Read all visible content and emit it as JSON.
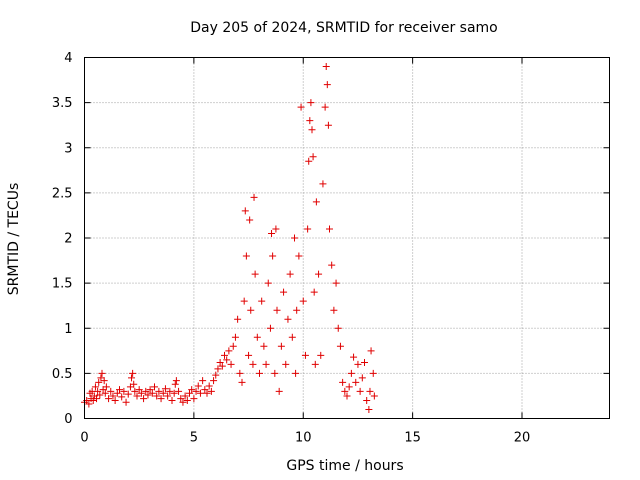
{
  "chart_data": {
    "type": "scatter",
    "title": "Day 205 of 2024, SRMTID for receiver samo",
    "xlabel": "GPS time / hours",
    "ylabel": "SRMTID / TECUs",
    "xlim": [
      0,
      24
    ],
    "ylim": [
      0,
      4
    ],
    "xticks": [
      0,
      5,
      10,
      15,
      20
    ],
    "xtick_labels": [
      "0",
      "5",
      "10",
      "15",
      "20"
    ],
    "yticks": [
      0,
      0.5,
      1,
      1.5,
      2,
      2.5,
      3,
      3.5,
      4
    ],
    "ytick_labels": [
      "0",
      "0.5",
      "1",
      "1.5",
      "2",
      "2.5",
      "3",
      "3.5",
      "4"
    ],
    "grid": true,
    "marker": "+",
    "series": [
      {
        "name": "SRMTID",
        "color": "#e00000",
        "points": [
          [
            0.0,
            0.18
          ],
          [
            0.1,
            0.2
          ],
          [
            0.2,
            0.16
          ],
          [
            0.25,
            0.28
          ],
          [
            0.3,
            0.22
          ],
          [
            0.35,
            0.3
          ],
          [
            0.4,
            0.2
          ],
          [
            0.45,
            0.25
          ],
          [
            0.5,
            0.35
          ],
          [
            0.55,
            0.22
          ],
          [
            0.6,
            0.3
          ],
          [
            0.65,
            0.4
          ],
          [
            0.7,
            0.26
          ],
          [
            0.75,
            0.45
          ],
          [
            0.8,
            0.5
          ],
          [
            0.85,
            0.32
          ],
          [
            0.9,
            0.42
          ],
          [
            0.95,
            0.28
          ],
          [
            1.0,
            0.35
          ],
          [
            1.1,
            0.22
          ],
          [
            1.2,
            0.3
          ],
          [
            1.3,
            0.25
          ],
          [
            1.4,
            0.2
          ],
          [
            1.5,
            0.28
          ],
          [
            1.6,
            0.32
          ],
          [
            1.7,
            0.24
          ],
          [
            1.8,
            0.3
          ],
          [
            1.9,
            0.18
          ],
          [
            2.0,
            0.27
          ],
          [
            2.1,
            0.35
          ],
          [
            2.15,
            0.45
          ],
          [
            2.2,
            0.5
          ],
          [
            2.25,
            0.38
          ],
          [
            2.3,
            0.3
          ],
          [
            2.4,
            0.25
          ],
          [
            2.5,
            0.32
          ],
          [
            2.6,
            0.28
          ],
          [
            2.7,
            0.22
          ],
          [
            2.8,
            0.3
          ],
          [
            2.9,
            0.26
          ],
          [
            3.0,
            0.32
          ],
          [
            3.1,
            0.28
          ],
          [
            3.2,
            0.35
          ],
          [
            3.3,
            0.25
          ],
          [
            3.4,
            0.3
          ],
          [
            3.5,
            0.22
          ],
          [
            3.6,
            0.28
          ],
          [
            3.7,
            0.33
          ],
          [
            3.8,
            0.25
          ],
          [
            3.9,
            0.3
          ],
          [
            4.0,
            0.2
          ],
          [
            4.1,
            0.28
          ],
          [
            4.15,
            0.38
          ],
          [
            4.2,
            0.42
          ],
          [
            4.3,
            0.3
          ],
          [
            4.4,
            0.22
          ],
          [
            4.5,
            0.18
          ],
          [
            4.6,
            0.25
          ],
          [
            4.7,
            0.2
          ],
          [
            4.8,
            0.28
          ],
          [
            4.9,
            0.32
          ],
          [
            5.0,
            0.22
          ],
          [
            5.1,
            0.3
          ],
          [
            5.2,
            0.36
          ],
          [
            5.3,
            0.28
          ],
          [
            5.4,
            0.42
          ],
          [
            5.5,
            0.32
          ],
          [
            5.6,
            0.28
          ],
          [
            5.7,
            0.36
          ],
          [
            5.8,
            0.3
          ],
          [
            5.9,
            0.42
          ],
          [
            6.0,
            0.48
          ],
          [
            6.1,
            0.55
          ],
          [
            6.2,
            0.62
          ],
          [
            6.3,
            0.58
          ],
          [
            6.4,
            0.7
          ],
          [
            6.5,
            0.65
          ],
          [
            6.6,
            0.75
          ],
          [
            6.7,
            0.6
          ],
          [
            6.8,
            0.8
          ],
          [
            6.9,
            0.9
          ],
          [
            7.0,
            1.1
          ],
          [
            7.1,
            0.5
          ],
          [
            7.2,
            0.4
          ],
          [
            7.3,
            1.3
          ],
          [
            7.35,
            2.3
          ],
          [
            7.4,
            1.8
          ],
          [
            7.5,
            0.7
          ],
          [
            7.55,
            2.2
          ],
          [
            7.6,
            1.2
          ],
          [
            7.7,
            0.6
          ],
          [
            7.75,
            2.45
          ],
          [
            7.8,
            1.6
          ],
          [
            7.9,
            0.9
          ],
          [
            8.0,
            0.5
          ],
          [
            8.1,
            1.3
          ],
          [
            8.2,
            0.8
          ],
          [
            8.3,
            0.6
          ],
          [
            8.4,
            1.5
          ],
          [
            8.5,
            1.0
          ],
          [
            8.55,
            2.05
          ],
          [
            8.6,
            1.8
          ],
          [
            8.7,
            0.5
          ],
          [
            8.75,
            2.1
          ],
          [
            8.8,
            1.2
          ],
          [
            8.9,
            0.3
          ],
          [
            9.0,
            0.8
          ],
          [
            9.1,
            1.4
          ],
          [
            9.2,
            0.6
          ],
          [
            9.3,
            1.1
          ],
          [
            9.4,
            1.6
          ],
          [
            9.5,
            0.9
          ],
          [
            9.6,
            2.0
          ],
          [
            9.65,
            0.5
          ],
          [
            9.7,
            1.2
          ],
          [
            9.8,
            1.8
          ],
          [
            9.9,
            3.45
          ],
          [
            10.0,
            1.3
          ],
          [
            10.1,
            0.7
          ],
          [
            10.2,
            2.1
          ],
          [
            10.25,
            2.85
          ],
          [
            10.3,
            3.3
          ],
          [
            10.35,
            3.5
          ],
          [
            10.4,
            3.2
          ],
          [
            10.45,
            2.9
          ],
          [
            10.5,
            1.4
          ],
          [
            10.55,
            0.6
          ],
          [
            10.6,
            2.4
          ],
          [
            10.7,
            1.6
          ],
          [
            10.8,
            0.7
          ],
          [
            10.9,
            2.6
          ],
          [
            11.0,
            3.45
          ],
          [
            11.05,
            3.9
          ],
          [
            11.1,
            3.7
          ],
          [
            11.15,
            3.25
          ],
          [
            11.2,
            2.1
          ],
          [
            11.3,
            1.7
          ],
          [
            11.4,
            1.2
          ],
          [
            11.5,
            1.5
          ],
          [
            11.6,
            1.0
          ],
          [
            11.7,
            0.8
          ],
          [
            11.8,
            0.4
          ],
          [
            11.9,
            0.3
          ],
          [
            12.0,
            0.25
          ],
          [
            12.1,
            0.35
          ],
          [
            12.2,
            0.5
          ],
          [
            12.3,
            0.68
          ],
          [
            12.4,
            0.4
          ],
          [
            12.5,
            0.6
          ],
          [
            12.6,
            0.3
          ],
          [
            12.7,
            0.45
          ],
          [
            12.8,
            0.62
          ],
          [
            12.9,
            0.2
          ],
          [
            13.0,
            0.1
          ],
          [
            13.05,
            0.3
          ],
          [
            13.1,
            0.75
          ],
          [
            13.2,
            0.5
          ],
          [
            13.25,
            0.25
          ]
        ]
      }
    ]
  }
}
